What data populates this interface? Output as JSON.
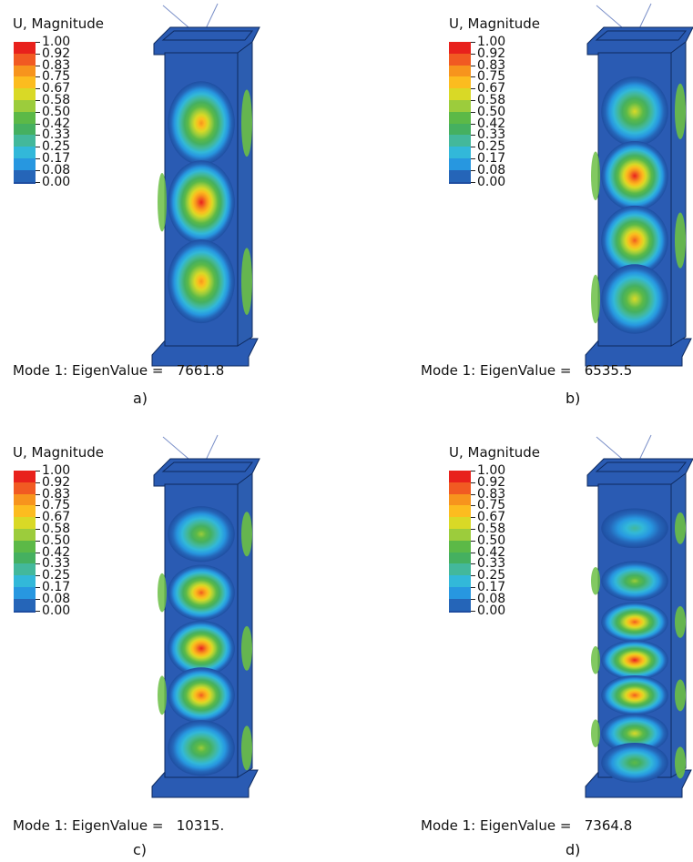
{
  "legend": {
    "title": "U, Magnitude",
    "levels": [
      {
        "label": "1.00",
        "color": "#e8211c"
      },
      {
        "label": "0.92",
        "color": "#f15a22"
      },
      {
        "label": "0.83",
        "color": "#f7941d"
      },
      {
        "label": "0.75",
        "color": "#fcbc1f"
      },
      {
        "label": "0.67",
        "color": "#d9d926"
      },
      {
        "label": "0.58",
        "color": "#9ccc3c"
      },
      {
        "label": "0.50",
        "color": "#5cb947"
      },
      {
        "label": "0.42",
        "color": "#45b060"
      },
      {
        "label": "0.33",
        "color": "#43b89b"
      },
      {
        "label": "0.25",
        "color": "#32b8d9"
      },
      {
        "label": "0.17",
        "color": "#2797e0"
      },
      {
        "label": "0.08",
        "color": "#2565b8"
      },
      {
        "label": "0.00",
        "color": "#1f4ea1"
      }
    ]
  },
  "panels": [
    {
      "id": "a",
      "caption_prefix": "Mode 1: EigenValue =",
      "eigenvalue": "7661.8",
      "sublabel": "a)",
      "bulges": [
        {
          "pos": 0.24,
          "peak": 0.85
        },
        {
          "pos": 0.51,
          "peak": 1.0
        },
        {
          "pos": 0.78,
          "peak": 0.85
        }
      ]
    },
    {
      "id": "b",
      "caption_prefix": "Mode 1: EigenValue =",
      "eigenvalue": "6535.5",
      "sublabel": "b)",
      "bulges": [
        {
          "pos": 0.2,
          "peak": 0.7
        },
        {
          "pos": 0.42,
          "peak": 1.0
        },
        {
          "pos": 0.64,
          "peak": 0.95
        },
        {
          "pos": 0.84,
          "peak": 0.7
        }
      ]
    },
    {
      "id": "c",
      "caption_prefix": "Mode 1: EigenValue =",
      "eigenvalue": "10315.",
      "sublabel": "c)",
      "bulges": [
        {
          "pos": 0.17,
          "peak": 0.55
        },
        {
          "pos": 0.37,
          "peak": 0.95
        },
        {
          "pos": 0.56,
          "peak": 1.0
        },
        {
          "pos": 0.72,
          "peak": 0.92
        },
        {
          "pos": 0.9,
          "peak": 0.6
        }
      ]
    },
    {
      "id": "d",
      "caption_prefix": "Mode 1: EigenValue =",
      "eigenvalue": "7364.8",
      "sublabel": "d)",
      "bulges": [
        {
          "pos": 0.15,
          "peak": 0.35
        },
        {
          "pos": 0.33,
          "peak": 0.6
        },
        {
          "pos": 0.47,
          "peak": 0.92
        },
        {
          "pos": 0.6,
          "peak": 1.0
        },
        {
          "pos": 0.72,
          "peak": 0.95
        },
        {
          "pos": 0.85,
          "peak": 0.7
        },
        {
          "pos": 0.95,
          "peak": 0.5
        }
      ]
    }
  ]
}
